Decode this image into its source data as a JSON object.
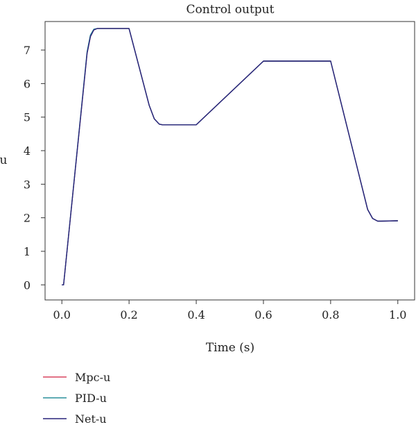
{
  "chart_data": {
    "type": "line",
    "title": "Control output",
    "xlabel": "Time (s)",
    "ylabel": "u",
    "xlim": [
      -0.05,
      1.05
    ],
    "ylim": [
      -0.45,
      7.85
    ],
    "xticks": [
      0.0,
      0.2,
      0.4,
      0.6,
      0.8,
      1.0
    ],
    "xtick_labels": [
      "0.0",
      "0.2",
      "0.4",
      "0.6",
      "0.8",
      "1.0"
    ],
    "yticks": [
      0,
      1,
      2,
      3,
      4,
      5,
      6,
      7
    ],
    "ytick_labels": [
      "0",
      "1",
      "2",
      "3",
      "4",
      "5",
      "6",
      "7"
    ],
    "grid": false,
    "legend_position": "bottom-left",
    "series": [
      {
        "name": "Mpc-u",
        "color": "#d9435e",
        "x": [
          0.0,
          0.005,
          0.075,
          0.085,
          0.095,
          0.105,
          0.2,
          0.26,
          0.275,
          0.29,
          0.3,
          0.4,
          0.6,
          0.8,
          0.91,
          0.925,
          0.94,
          0.95,
          1.0
        ],
        "y": [
          0.0,
          0.0,
          6.9,
          7.4,
          7.6,
          7.64,
          7.64,
          5.35,
          4.95,
          4.79,
          4.77,
          4.77,
          6.67,
          6.67,
          2.25,
          1.98,
          1.9,
          1.9,
          1.91
        ]
      },
      {
        "name": "PID-u",
        "color": "#2a8f9c",
        "x": [
          0.0,
          0.005,
          0.075,
          0.085,
          0.095,
          0.105,
          0.2,
          0.26,
          0.275,
          0.29,
          0.3,
          0.4,
          0.6,
          0.8,
          0.91,
          0.925,
          0.94,
          0.95,
          1.0
        ],
        "y": [
          0.0,
          0.0,
          6.95,
          7.45,
          7.62,
          7.64,
          7.64,
          5.35,
          4.95,
          4.79,
          4.77,
          4.77,
          6.67,
          6.67,
          2.25,
          1.98,
          1.9,
          1.9,
          1.91
        ]
      },
      {
        "name": "Net-u",
        "color": "#28237a",
        "x": [
          0.0,
          0.005,
          0.075,
          0.085,
          0.095,
          0.105,
          0.2,
          0.26,
          0.275,
          0.29,
          0.3,
          0.4,
          0.6,
          0.8,
          0.91,
          0.925,
          0.94,
          0.95,
          1.0
        ],
        "y": [
          0.0,
          0.0,
          6.9,
          7.4,
          7.6,
          7.64,
          7.64,
          5.35,
          4.95,
          4.79,
          4.77,
          4.77,
          6.67,
          6.67,
          2.25,
          1.98,
          1.9,
          1.9,
          1.91
        ]
      }
    ]
  }
}
